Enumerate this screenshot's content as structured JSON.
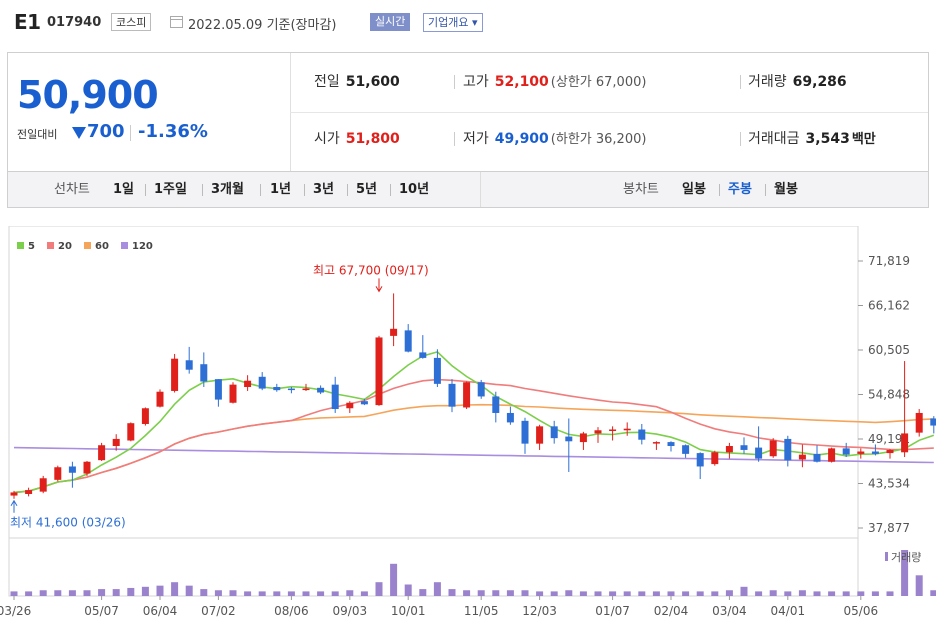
{
  "header": {
    "name": "E1",
    "code": "017940",
    "market": "코스피",
    "date_text": "2022.05.09 기준(장마감)",
    "realtime_label": "실시간",
    "overview_label": "기업개요 ▾"
  },
  "quote": {
    "price": "50,900",
    "compare_label": "전일대비",
    "change": "700",
    "change_pct": "-1.36%",
    "prev_label": "전일",
    "prev": "51,600",
    "high_label": "고가",
    "high": "52,100",
    "upper_limit": "(상한가 67,000)",
    "volume_label": "거래량",
    "volume": "69,286",
    "open_label": "시가",
    "open": "51,800",
    "low_label": "저가",
    "low": "49,900",
    "lower_limit": "(하한가 36,200)",
    "amount_label": "거래대금",
    "amount": "3,543",
    "amount_unit": "백만"
  },
  "period_bar": {
    "line_label": "선차트",
    "line_items": [
      "1일",
      "1주일",
      "3개월",
      "1년",
      "3년",
      "5년",
      "10년"
    ],
    "candle_label": "봉차트",
    "candle_items": [
      "일봉",
      "주봉",
      "월봉"
    ],
    "active_candle": "주봉"
  },
  "colors": {
    "up": "#e0201b",
    "down": "#2e6fd6",
    "ma5": "#7ccf4a",
    "ma20": "#f07c7c",
    "ma60": "#f5a55a",
    "ma120": "#a98ee0",
    "volume": "#9a82cc"
  },
  "chart_data": {
    "type": "candlestick",
    "legend": [
      "5",
      "20",
      "60",
      "120"
    ],
    "y_ticks": [
      "71,819",
      "66,162",
      "60,505",
      "54,848",
      "49,191",
      "43,534",
      "37,877"
    ],
    "ylim": [
      37877,
      71819
    ],
    "x_ticks": [
      "03/26",
      "05/07",
      "06/04",
      "07/02",
      "08/06",
      "09/03",
      "10/01",
      "11/05",
      "12/03",
      "01/07",
      "02/04",
      "03/04",
      "04/01",
      "05/06"
    ],
    "x_tick_index": [
      0,
      6,
      10,
      14,
      19,
      23,
      27,
      32,
      36,
      41,
      45,
      49,
      53,
      58
    ],
    "high_annotation": "최고 67,700 (09/17)",
    "high_index": 25,
    "high_value": 67700,
    "low_annotation": "최저 41,600 (03/26)",
    "low_index": 0,
    "low_value": 41600,
    "volume_label": "거래량",
    "ohlc": [
      [
        42000,
        42600,
        41600,
        42400
      ],
      [
        42200,
        43000,
        41900,
        42700
      ],
      [
        42500,
        44500,
        42300,
        44200
      ],
      [
        44000,
        45800,
        43800,
        45600
      ],
      [
        45700,
        46300,
        43000,
        44900
      ],
      [
        44800,
        46400,
        44500,
        46300
      ],
      [
        46500,
        48700,
        46400,
        48400
      ],
      [
        48300,
        49800,
        47700,
        49200
      ],
      [
        49000,
        51300,
        48900,
        51200
      ],
      [
        51100,
        53200,
        50900,
        53100
      ],
      [
        53300,
        55500,
        53200,
        55200
      ],
      [
        55300,
        60000,
        55100,
        59400
      ],
      [
        59200,
        60900,
        57500,
        58000
      ],
      [
        58700,
        60200,
        55800,
        56500
      ],
      [
        56800,
        56800,
        53300,
        54200
      ],
      [
        53800,
        56400,
        53700,
        56100
      ],
      [
        55800,
        57300,
        55300,
        56600
      ],
      [
        57100,
        57700,
        55400,
        55600
      ],
      [
        55800,
        56200,
        55200,
        55400
      ],
      [
        55600,
        55800,
        55000,
        55500
      ],
      [
        55600,
        56200,
        55300,
        55600
      ],
      [
        55700,
        56000,
        54900,
        55100
      ],
      [
        56100,
        57100,
        52500,
        53000
      ],
      [
        53100,
        54000,
        52500,
        53800
      ],
      [
        54000,
        54300,
        53500,
        53600
      ],
      [
        53500,
        62300,
        53400,
        62100
      ],
      [
        62300,
        67700,
        61000,
        63200
      ],
      [
        63000,
        63800,
        60200,
        60300
      ],
      [
        60200,
        62400,
        59400,
        59500
      ],
      [
        59500,
        60600,
        55800,
        56200
      ],
      [
        56200,
        56800,
        52600,
        53300
      ],
      [
        53200,
        56500,
        53000,
        56400
      ],
      [
        56400,
        56700,
        54300,
        54600
      ],
      [
        54600,
        55200,
        51300,
        52500
      ],
      [
        52500,
        53300,
        51000,
        51300
      ],
      [
        51500,
        51900,
        47300,
        48600
      ],
      [
        48600,
        51000,
        47800,
        50800
      ],
      [
        50800,
        51500,
        48600,
        49300
      ],
      [
        49500,
        51800,
        45000,
        48900
      ],
      [
        48800,
        50100,
        47800,
        49900
      ],
      [
        49900,
        50700,
        48700,
        50300
      ],
      [
        50300,
        50800,
        49000,
        50400
      ],
      [
        50300,
        51300,
        49600,
        50500
      ],
      [
        50400,
        51100,
        48500,
        49100
      ],
      [
        48800,
        48900,
        47800,
        48800
      ],
      [
        48800,
        48900,
        47600,
        48300
      ],
      [
        48400,
        48500,
        46800,
        47300
      ],
      [
        47400,
        47500,
        44100,
        45700
      ],
      [
        46000,
        47700,
        45800,
        47500
      ],
      [
        47500,
        48700,
        46700,
        48300
      ],
      [
        48400,
        49400,
        47300,
        47800
      ],
      [
        48100,
        50800,
        46300,
        46700
      ],
      [
        47000,
        49300,
        46800,
        49000
      ],
      [
        49200,
        49600,
        45700,
        46500
      ],
      [
        46600,
        48500,
        45600,
        47200
      ],
      [
        47300,
        48400,
        46200,
        46300
      ],
      [
        46300,
        48100,
        46200,
        48000
      ],
      [
        48000,
        48700,
        46900,
        47200
      ],
      [
        47300,
        48000,
        46700,
        47600
      ],
      [
        47600,
        48500,
        47100,
        47300
      ],
      [
        47400,
        47900,
        46700,
        47800
      ],
      [
        47500,
        59100,
        46900,
        49900
      ],
      [
        50000,
        53000,
        49500,
        52500
      ],
      [
        51800,
        52100,
        49900,
        50900
      ]
    ],
    "volume": [
      4,
      4,
      5,
      5,
      5,
      5,
      6,
      6,
      7,
      8,
      9,
      12,
      9,
      6,
      5,
      5,
      4,
      4,
      4,
      4,
      4,
      4,
      4,
      5,
      4,
      12,
      28,
      10,
      6,
      12,
      6,
      5,
      5,
      5,
      5,
      5,
      4,
      4,
      5,
      4,
      4,
      4,
      4,
      4,
      4,
      4,
      4,
      4,
      4,
      5,
      8,
      4,
      5,
      4,
      5,
      4,
      4,
      4,
      4,
      4,
      4,
      40,
      18,
      5
    ]
  }
}
